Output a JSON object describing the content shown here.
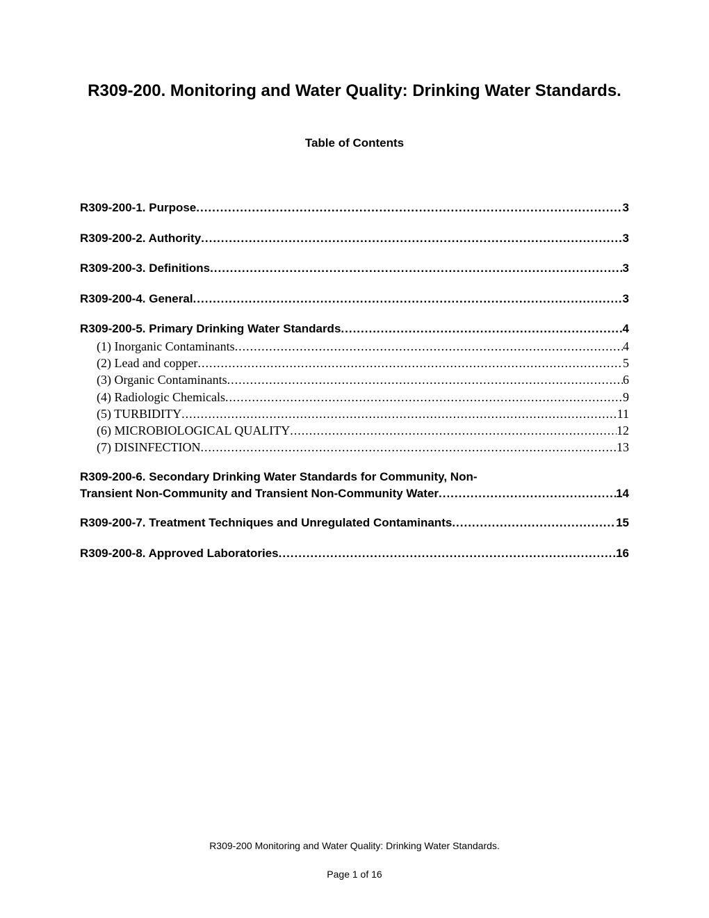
{
  "title": "R309-200.  Monitoring and Water Quality: Drinking Water Standards.",
  "toc_heading": "Table of Contents",
  "entries": [
    {
      "level": 1,
      "label": "R309-200-1.  Purpose",
      "page": "3"
    },
    {
      "level": 1,
      "label": "R309-200-2.  Authority",
      "page": "3"
    },
    {
      "level": 1,
      "label": "R309-200-3.  Definitions",
      "page": "3"
    },
    {
      "level": 1,
      "label": "R309-200-4.  General",
      "page": "3"
    },
    {
      "level": 1,
      "label": "R309-200-5.  Primary Drinking Water Standards",
      "page": "4"
    },
    {
      "level": 2,
      "label": "(1)  Inorganic Contaminants",
      "page": "4"
    },
    {
      "level": 2,
      "label": "(2)  Lead and copper",
      "page": "5"
    },
    {
      "level": 2,
      "label": "(3)  Organic Contaminants",
      "page": "6"
    },
    {
      "level": 2,
      "label": "(4)  Radiologic Chemicals",
      "page": "9"
    },
    {
      "level": 2,
      "label": "(5)  TURBIDITY",
      "page": "11"
    },
    {
      "level": 2,
      "label": "(6)  MICROBIOLOGICAL QUALITY",
      "page": "12"
    },
    {
      "level": 2,
      "label": "(7)  DISINFECTION",
      "page": "13"
    }
  ],
  "section6": {
    "line1": "R309-200-6.  Secondary Drinking Water Standards for Community, Non-",
    "line2_label": "Transient Non-Community and Transient Non-Community Water",
    "page": "14"
  },
  "section7": {
    "label": "R309-200-7.  Treatment Techniques and Unregulated Contaminants",
    "page": "15"
  },
  "section8": {
    "label": "R309-200-8.  Approved Laboratories",
    "page": "16"
  },
  "footer_text": "R309-200 Monitoring and Water Quality:  Drinking Water Standards.",
  "page_number": "Page 1 of 16"
}
